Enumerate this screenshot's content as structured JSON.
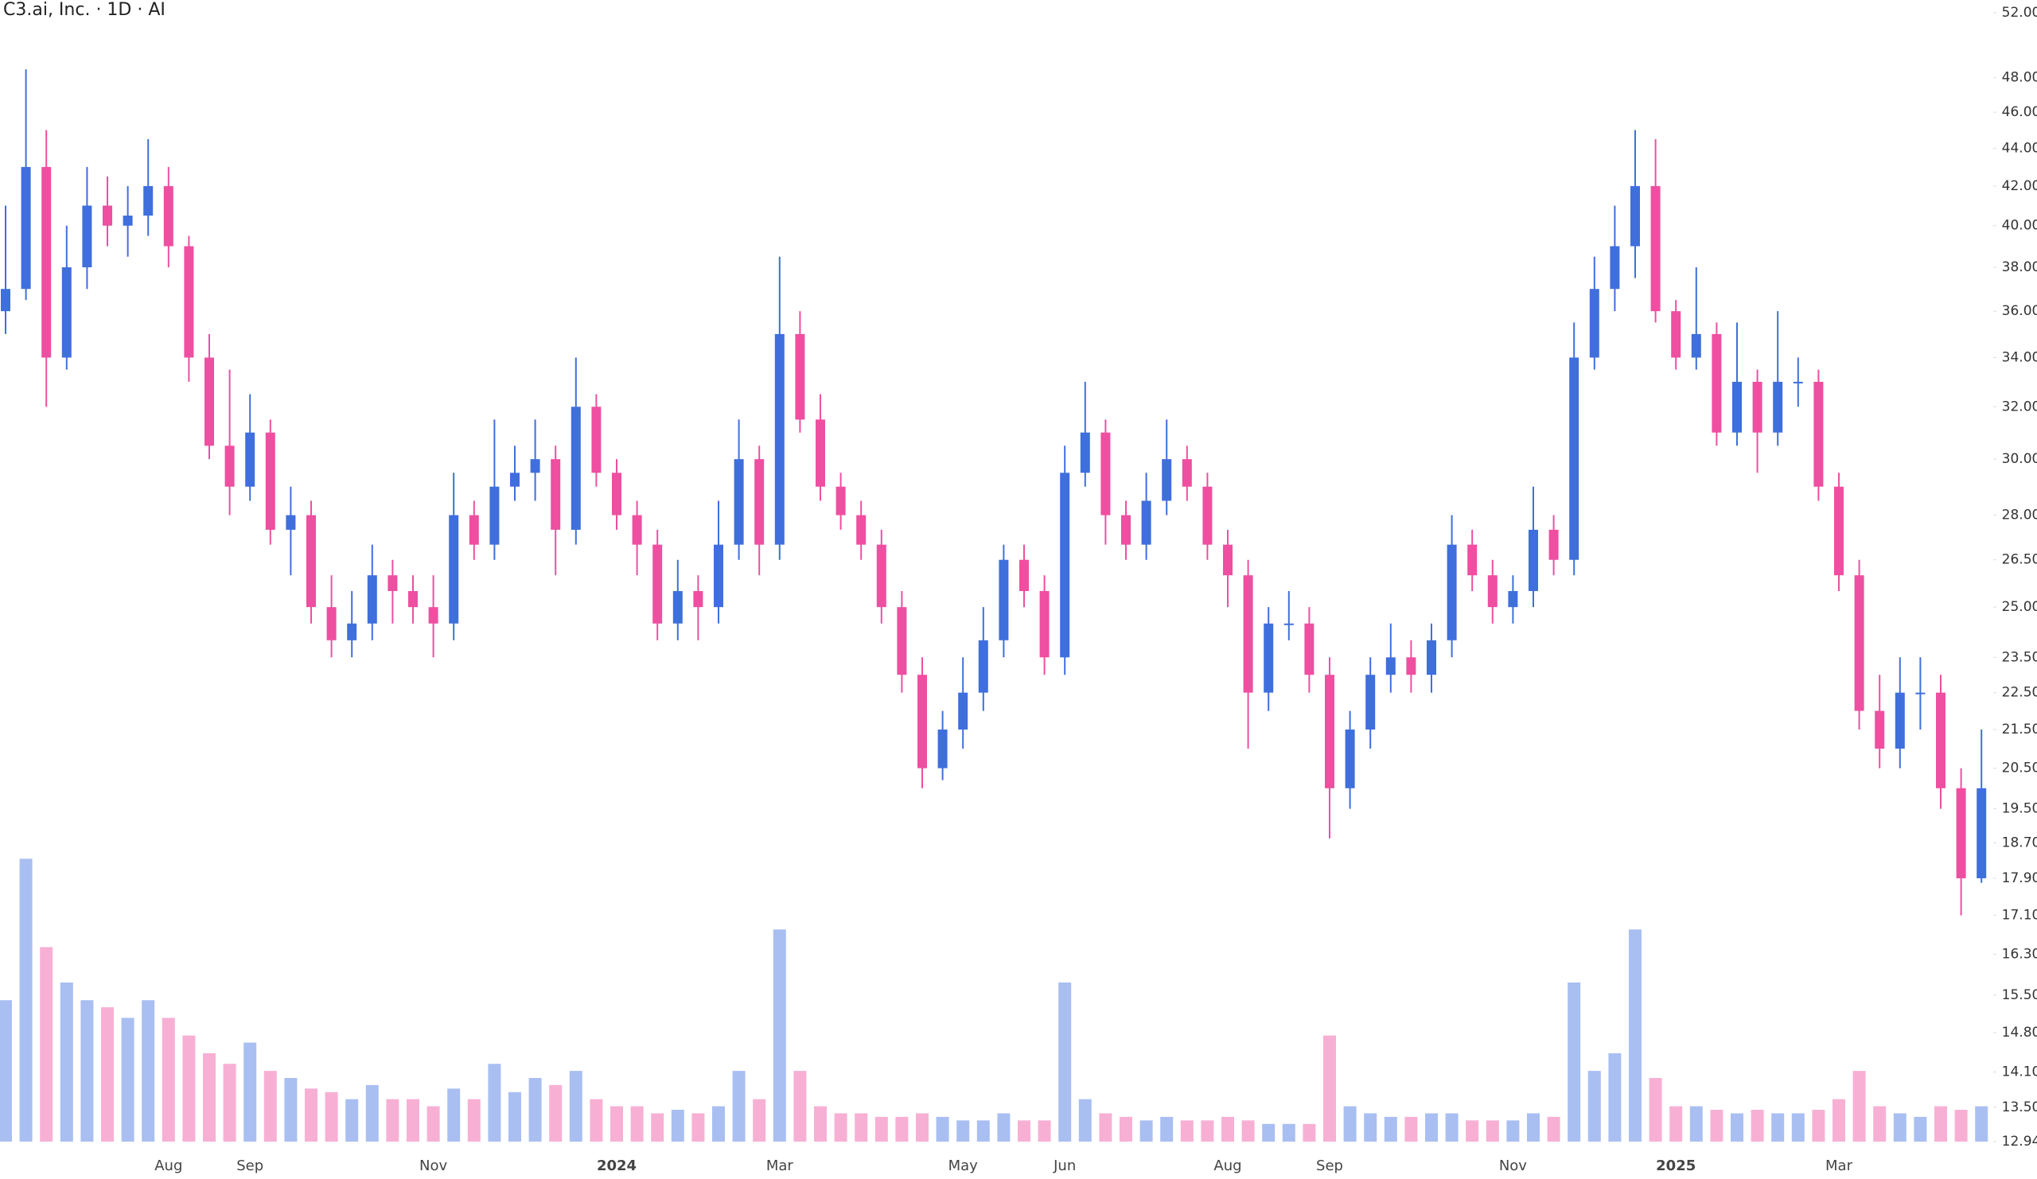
{
  "chart_data": {
    "type": "candlestick",
    "title": "C3.ai, Inc. · 1D · AI",
    "log_scale": true,
    "up_color": "#3f6fdc",
    "down_color": "#ee4fa0",
    "volume_up_color": "#a9bff2",
    "volume_down_color": "#f7b0d4",
    "categories": [
      null,
      null,
      null,
      null,
      null,
      null,
      null,
      null,
      "Aug",
      null,
      null,
      null,
      "Sep",
      null,
      null,
      null,
      null,
      null,
      null,
      null,
      null,
      "Nov",
      null,
      null,
      null,
      null,
      null,
      null,
      null,
      null,
      "2024",
      null,
      null,
      null,
      null,
      null,
      null,
      null,
      "Mar",
      null,
      null,
      null,
      null,
      null,
      null,
      null,
      null,
      "May",
      null,
      null,
      null,
      null,
      "Jun",
      null,
      null,
      null,
      null,
      null,
      null,
      null,
      "Aug",
      null,
      null,
      null,
      null,
      "Sep",
      null,
      null,
      null,
      null,
      null,
      null,
      null,
      null,
      "Nov",
      null,
      null,
      null,
      null,
      null,
      null,
      null,
      "2025",
      null,
      null,
      null,
      null,
      null,
      null,
      null,
      "Mar",
      null,
      null,
      null,
      null,
      null,
      null,
      null
    ],
    "open": [
      36,
      37,
      43,
      34,
      38,
      41,
      40,
      40.5,
      42,
      39,
      34,
      30.5,
      29,
      31,
      27.5,
      28,
      25,
      24,
      24.5,
      26,
      25.5,
      25,
      24.5,
      28,
      27,
      29,
      29.5,
      30,
      27.5,
      32,
      29.5,
      28,
      27,
      24.5,
      25.5,
      25,
      27,
      30,
      27,
      35,
      31.5,
      29,
      28,
      27,
      25,
      23,
      20.5,
      21.5,
      22.5,
      24,
      26.5,
      25.5,
      23.5,
      29.5,
      31,
      28,
      27,
      28.5,
      30,
      29,
      27,
      26,
      22.5,
      24.5,
      24.5,
      23,
      20,
      21.5,
      23,
      23.5,
      23,
      24,
      27,
      26,
      25,
      25.5,
      27.5,
      26.5,
      34,
      37,
      39,
      42,
      36,
      34,
      35,
      31,
      33,
      31,
      33,
      33,
      29,
      26,
      22,
      21,
      22.5,
      22.5,
      20,
      17.9
    ],
    "high": [
      41,
      48.5,
      45,
      40,
      43,
      42.5,
      42,
      44.5,
      43,
      39.5,
      35,
      33.5,
      32.5,
      31.5,
      29,
      28.5,
      26,
      25.5,
      27,
      26.5,
      26,
      26,
      29.5,
      28.5,
      31.5,
      30.5,
      31.5,
      30.5,
      34,
      32.5,
      30,
      28.5,
      27.5,
      26.5,
      26,
      28.5,
      31.5,
      30.5,
      38.5,
      36,
      32.5,
      29.5,
      28.5,
      27.5,
      25.5,
      23.5,
      22,
      23.5,
      25,
      27,
      27,
      26,
      30.5,
      33,
      31.5,
      28.5,
      29.5,
      31.5,
      30.5,
      29.5,
      27.5,
      26.5,
      25,
      25.5,
      25,
      23.5,
      22,
      23.5,
      24.5,
      24,
      24.5,
      28,
      27.5,
      26.5,
      26,
      29,
      28,
      35.5,
      38.5,
      41,
      45,
      44.5,
      36.5,
      38,
      35.5,
      35.5,
      33.5,
      36,
      34,
      33.5,
      29.5,
      26.5,
      23,
      23.5,
      23.5,
      23,
      20.5,
      21.5
    ],
    "low": [
      35,
      36.5,
      32,
      33.5,
      37,
      39,
      38.5,
      39.5,
      38,
      33,
      30,
      28,
      28.5,
      27,
      26,
      24.5,
      23.5,
      23.5,
      24,
      24.5,
      24.5,
      23.5,
      24,
      26.5,
      26.5,
      28.5,
      28.5,
      26,
      27,
      29,
      27.5,
      26,
      24,
      24,
      24,
      24.5,
      26.5,
      26,
      26.5,
      31,
      28.5,
      27.5,
      26.5,
      24.5,
      22.5,
      20,
      20.2,
      21,
      22,
      23.5,
      25,
      23,
      23,
      29,
      27,
      26.5,
      26.5,
      28,
      28.5,
      26.5,
      25,
      21,
      22,
      24,
      22.5,
      18.8,
      19.5,
      21,
      22.5,
      22.5,
      22.5,
      23.5,
      25.5,
      24.5,
      24.5,
      25,
      26,
      26,
      33.5,
      36,
      37.5,
      35.5,
      33.5,
      33.5,
      30.5,
      30.5,
      29.5,
      30.5,
      32,
      28.5,
      25.5,
      21.5,
      20.5,
      20.5,
      21.5,
      19.5,
      17.1,
      17.8
    ],
    "close": [
      37,
      43,
      34,
      38,
      41,
      40,
      40.5,
      42,
      39,
      34,
      30.5,
      29,
      31,
      27.5,
      28,
      25,
      24,
      24.5,
      26,
      25.5,
      25,
      24.5,
      28,
      27,
      29,
      29.5,
      30,
      27.5,
      32,
      29.5,
      28,
      27,
      24.5,
      25.5,
      25,
      27,
      30,
      27,
      35,
      31.5,
      29,
      28,
      27,
      25,
      23,
      20.5,
      21.5,
      22.5,
      24,
      26.5,
      25.5,
      23.5,
      29.5,
      31,
      28,
      27,
      28.5,
      30,
      29,
      27,
      26,
      22.5,
      24.5,
      24.5,
      23,
      20,
      21.5,
      23,
      23.5,
      23,
      24,
      27,
      26,
      25,
      25.5,
      27.5,
      26.5,
      34,
      37,
      39,
      42,
      36,
      34,
      35,
      31,
      33,
      31,
      33,
      33,
      29,
      26,
      22,
      21,
      22.5,
      22.5,
      20,
      17.9,
      20
    ],
    "volume": [
      40,
      80,
      55,
      45,
      40,
      38,
      35,
      40,
      35,
      30,
      25,
      22,
      28,
      20,
      18,
      15,
      14,
      12,
      16,
      12,
      12,
      10,
      15,
      12,
      22,
      14,
      18,
      16,
      20,
      12,
      10,
      10,
      8,
      9,
      8,
      10,
      20,
      12,
      60,
      20,
      10,
      8,
      8,
      7,
      7,
      8,
      7,
      6,
      6,
      8,
      6,
      6,
      45,
      12,
      8,
      7,
      6,
      7,
      6,
      6,
      7,
      6,
      5,
      5,
      5,
      30,
      10,
      8,
      7,
      7,
      8,
      8,
      6,
      6,
      6,
      8,
      7,
      45,
      20,
      25,
      60,
      18,
      10,
      10,
      9,
      8,
      9,
      8,
      8,
      9,
      12,
      20,
      10,
      8,
      7,
      10,
      9,
      10
    ],
    "vlim": [
      0,
      90
    ],
    "ylim": [
      12.94,
      52
    ],
    "yticks": [
      {
        "value": 52,
        "label": "52.00"
      },
      {
        "value": 48,
        "label": "48.00"
      },
      {
        "value": 46,
        "label": "46.00"
      },
      {
        "value": 44,
        "label": "44.00"
      },
      {
        "value": 42,
        "label": "42.00"
      },
      {
        "value": 40,
        "label": "40.00"
      },
      {
        "value": 38,
        "label": "38.00"
      },
      {
        "value": 36,
        "label": "36.00"
      },
      {
        "value": 34,
        "label": "34.00"
      },
      {
        "value": 32,
        "label": "32.00"
      },
      {
        "value": 30,
        "label": "30.00"
      },
      {
        "value": 28,
        "label": "28.00"
      },
      {
        "value": 26.5,
        "label": "26.50"
      },
      {
        "value": 25,
        "label": "25.00"
      },
      {
        "value": 23.5,
        "label": "23.50"
      },
      {
        "value": 22.5,
        "label": "22.50"
      },
      {
        "value": 21.5,
        "label": "21.50"
      },
      {
        "value": 20.5,
        "label": "20.50"
      },
      {
        "value": 19.5,
        "label": "19.50"
      },
      {
        "value": 18.7,
        "label": "18.70"
      },
      {
        "value": 17.9,
        "label": "17.90"
      },
      {
        "value": 17.1,
        "label": "17.10"
      },
      {
        "value": 16.3,
        "label": "16.30"
      },
      {
        "value": 15.5,
        "label": "15.50"
      },
      {
        "value": 14.8,
        "label": "14.80"
      },
      {
        "value": 14.1,
        "label": "14.10"
      },
      {
        "value": 13.5,
        "label": "13.50"
      },
      12.94
    ]
  }
}
